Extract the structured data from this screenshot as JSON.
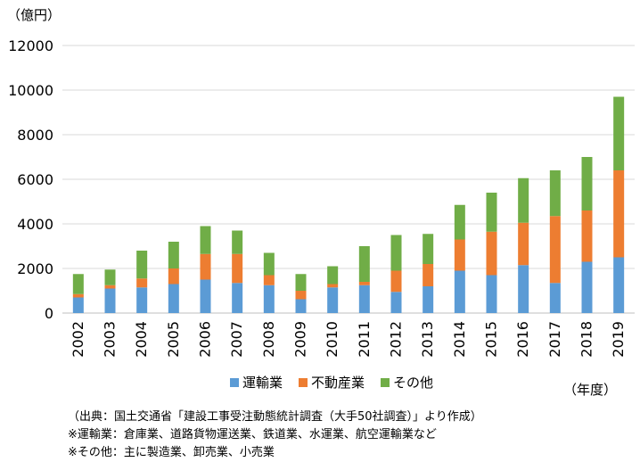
{
  "chart_data": {
    "type": "bar",
    "stacked": true,
    "categories": [
      "2002",
      "2003",
      "2004",
      "2005",
      "2006",
      "2007",
      "2008",
      "2009",
      "2010",
      "2011",
      "2012",
      "2013",
      "2014",
      "2015",
      "2016",
      "2017",
      "2018",
      "2019"
    ],
    "series": [
      {
        "name": "運輸業",
        "color": "#5b9bd5",
        "values": [
          700,
          1100,
          1150,
          1300,
          1500,
          1350,
          1250,
          620,
          1150,
          1250,
          950,
          1200,
          1900,
          1700,
          2150,
          1350,
          2300,
          2500
        ]
      },
      {
        "name": "不動産業",
        "color": "#ed7d31",
        "values": [
          150,
          150,
          400,
          700,
          1150,
          1300,
          450,
          380,
          150,
          150,
          950,
          1000,
          1400,
          1950,
          1900,
          3000,
          2300,
          3900
        ]
      },
      {
        "name": "その他",
        "color": "#70ad47",
        "values": [
          900,
          700,
          1250,
          1200,
          1250,
          1050,
          1000,
          750,
          800,
          1600,
          1600,
          1350,
          1550,
          1750,
          2000,
          2050,
          2400,
          3300
        ]
      }
    ],
    "ylabel": "（億円）",
    "xlabel": "（年度）",
    "ylim": [
      0,
      12000
    ],
    "yticks": [
      0,
      2000,
      4000,
      6000,
      8000,
      10000,
      12000
    ],
    "grid": true,
    "legend": "bottom"
  },
  "notes": [
    "（出典：国土交通省「建設工事受注動態統計調査（大手50社調査）」より作成）",
    "※運輸業：倉庫業、道路貨物運送業、鉄道業、水運業、航空運輸業など",
    "※その他：主に製造業、卸売業、小売業"
  ]
}
